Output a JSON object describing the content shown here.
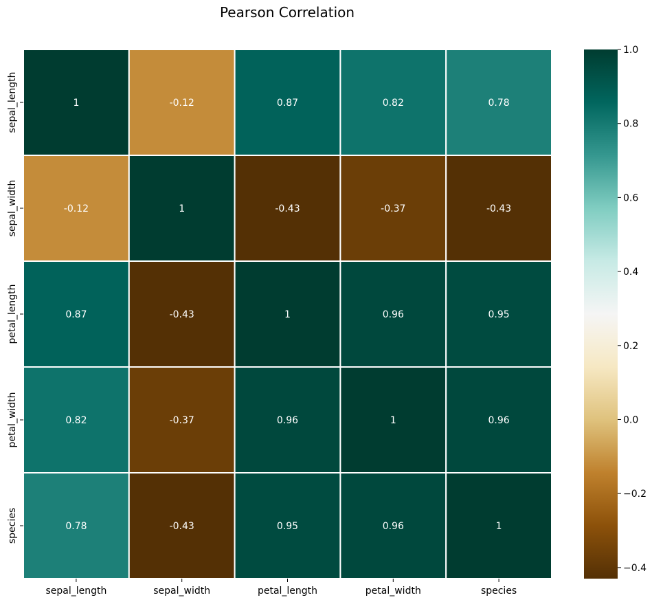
{
  "chart_data": {
    "type": "heatmap",
    "title": "Pearson Correlation",
    "xlabel": "",
    "ylabel": "",
    "x_categories": [
      "sepal_length",
      "sepal_width",
      "petal_length",
      "petal_width",
      "species"
    ],
    "y_categories": [
      "sepal_length",
      "sepal_width",
      "petal_length",
      "petal_width",
      "species"
    ],
    "values": [
      [
        1,
        -0.12,
        0.87,
        0.82,
        0.78
      ],
      [
        -0.12,
        1,
        -0.43,
        -0.37,
        -0.43
      ],
      [
        0.87,
        -0.43,
        1,
        0.96,
        0.95
      ],
      [
        0.82,
        -0.37,
        0.96,
        1,
        0.96
      ],
      [
        0.78,
        -0.43,
        0.95,
        0.96,
        1
      ]
    ],
    "cell_labels": [
      [
        "1",
        "-0.12",
        "0.87",
        "0.82",
        "0.78"
      ],
      [
        "-0.12",
        "1",
        "-0.43",
        "-0.37",
        "-0.43"
      ],
      [
        "0.87",
        "-0.43",
        "1",
        "0.96",
        "0.95"
      ],
      [
        "0.82",
        "-0.37",
        "0.96",
        "1",
        "0.96"
      ],
      [
        "0.78",
        "-0.43",
        "0.95",
        "0.96",
        "1"
      ]
    ],
    "colormap": "BrBG",
    "colorbar": {
      "range": [
        -0.43,
        1.0
      ],
      "ticks": [
        -0.4,
        -0.2,
        0.0,
        0.2,
        0.4,
        0.6,
        0.8,
        1.0
      ],
      "tick_labels": [
        "−0.4",
        "−0.2",
        "0.0",
        "0.2",
        "0.4",
        "0.6",
        "0.8",
        "1.0"
      ]
    },
    "grid": true,
    "cell_annotation_color": "#ffffff"
  }
}
